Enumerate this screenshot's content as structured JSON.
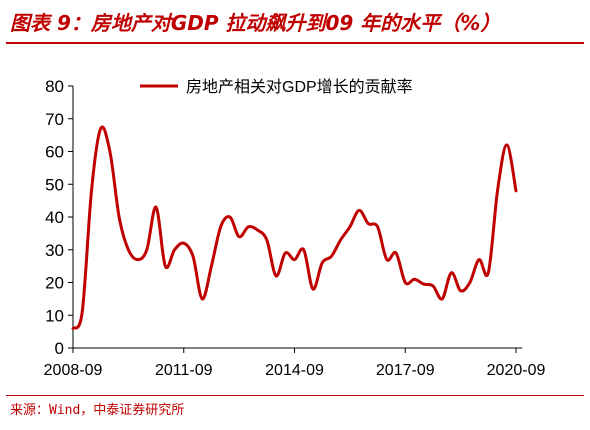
{
  "header": {
    "title": "图表 9：房地产对GDP 拉动飙升到09 年的水平（%）"
  },
  "footer": {
    "source": "来源：Wind，中泰证券研究所"
  },
  "colors": {
    "accent": "#c00000",
    "axis": "#000000",
    "text": "#000000"
  },
  "chart_data": {
    "type": "line",
    "title": "",
    "xlabel": "",
    "ylabel": "",
    "ylim": [
      0,
      80
    ],
    "yticks": [
      0,
      10,
      20,
      30,
      40,
      50,
      60,
      70,
      80
    ],
    "xticks": [
      "2008-09",
      "2011-09",
      "2014-09",
      "2017-09",
      "2020-09"
    ],
    "grid": false,
    "legend_position": "top",
    "x": [
      "2008-09",
      "2008-12",
      "2009-03",
      "2009-06",
      "2009-09",
      "2009-12",
      "2010-03",
      "2010-06",
      "2010-09",
      "2010-12",
      "2011-03",
      "2011-06",
      "2011-09",
      "2011-12",
      "2012-03",
      "2012-06",
      "2012-09",
      "2012-12",
      "2013-03",
      "2013-06",
      "2013-09",
      "2013-12",
      "2014-03",
      "2014-06",
      "2014-09",
      "2014-12",
      "2015-03",
      "2015-06",
      "2015-09",
      "2015-12",
      "2016-03",
      "2016-06",
      "2016-09",
      "2016-12",
      "2017-03",
      "2017-06",
      "2017-09",
      "2017-12",
      "2018-03",
      "2018-06",
      "2018-09",
      "2018-12",
      "2019-03",
      "2019-06",
      "2019-09",
      "2019-12",
      "2020-03",
      "2020-06",
      "2020-09"
    ],
    "series": [
      {
        "name": "房地产相关对GDP增长的贡献率",
        "color": "#c00000",
        "values": [
          6,
          11,
          48,
          67,
          60,
          40,
          30,
          27,
          30,
          43,
          25,
          30,
          32,
          28,
          15,
          25,
          37,
          40,
          34,
          37,
          36,
          33,
          22,
          29,
          27,
          30,
          18,
          26,
          28,
          33,
          37,
          42,
          38,
          37,
          27,
          29,
          20,
          21,
          19.5,
          19,
          15,
          23,
          17.5,
          20,
          27,
          23,
          48,
          62,
          48
        ]
      }
    ]
  }
}
